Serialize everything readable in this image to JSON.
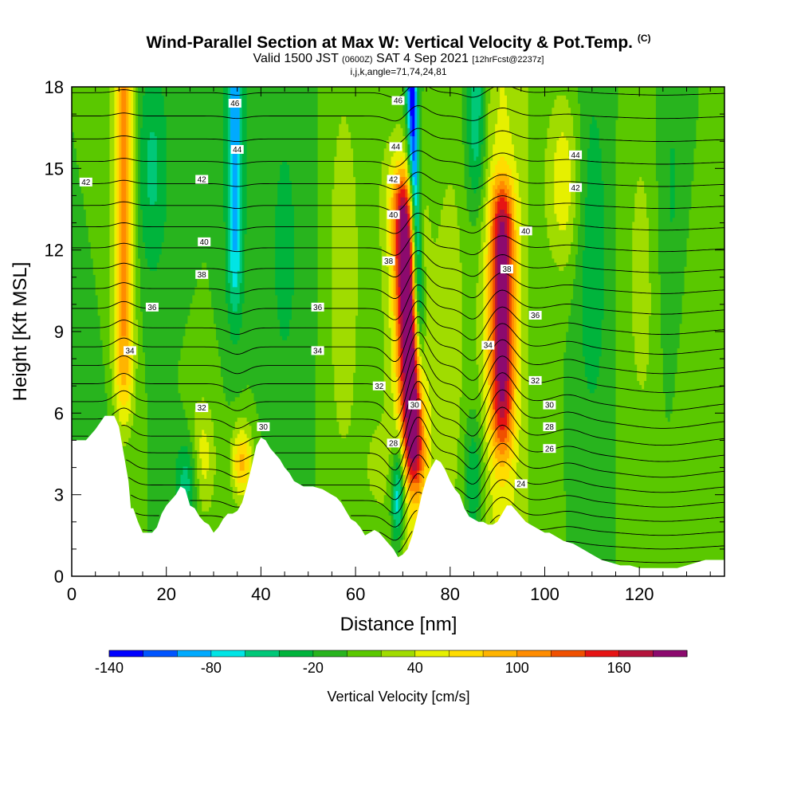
{
  "header": {
    "title": "Wind-Parallel Section at Max W: Vertical Velocity & Pot.Temp.",
    "copyright": "(C)",
    "valid_prefix": "Valid 1500 JST",
    "valid_utc": "(0600Z)",
    "valid_date": "SAT 4 Sep 2021",
    "forecast": "[12hrFcst@2237z]",
    "indices": "i,j,k,angle=71,74,24,81"
  },
  "chart_data": {
    "type": "heatmap",
    "xlabel": "Distance [nm]",
    "ylabel": "Height [Kft MSL]",
    "xlim": [
      0,
      138
    ],
    "ylim": [
      0,
      18
    ],
    "x_ticks": [
      0,
      20,
      40,
      60,
      80,
      100,
      120
    ],
    "y_ticks": [
      0,
      3,
      6,
      9,
      12,
      15,
      18
    ],
    "colorbar": {
      "label": "Vertical Velocity [cm/s]",
      "tick_labels": [
        "-140",
        "-80",
        "-20",
        "40",
        "100",
        "160"
      ],
      "tick_values": [
        -140,
        -80,
        -20,
        40,
        100,
        160
      ],
      "levels": [
        -140,
        -120,
        -100,
        -80,
        -60,
        -40,
        -20,
        0,
        20,
        40,
        60,
        80,
        100,
        120,
        140,
        160,
        180,
        200
      ],
      "colors": [
        "#0000ff",
        "#0055ff",
        "#00aaff",
        "#00e5e5",
        "#00c878",
        "#00b43c",
        "#28b41e",
        "#5ac800",
        "#a0dc00",
        "#e6f000",
        "#ffdc00",
        "#ffb400",
        "#ff8c00",
        "#f05000",
        "#e61414",
        "#b4143c",
        "#8c0a6e"
      ]
    },
    "updraft_cores": [
      {
        "x": 71.5,
        "w_max": 180,
        "top_kft": 14.5
      },
      {
        "x": 91,
        "w_max": 160,
        "top_kft": 14
      }
    ],
    "downdraft_cores": [
      {
        "x": 34.5,
        "w_min": -100
      },
      {
        "x": 73,
        "w_min": -140
      },
      {
        "x": 85,
        "w_min": -80
      }
    ],
    "theta_contour_labels": [
      {
        "text": "46",
        "x": 34.5,
        "y": 17.4
      },
      {
        "text": "46",
        "x": 69,
        "y": 17.5
      },
      {
        "text": "44",
        "x": 35,
        "y": 15.7
      },
      {
        "text": "44",
        "x": 68.5,
        "y": 15.8
      },
      {
        "text": "44",
        "x": 106.5,
        "y": 15.5
      },
      {
        "text": "42",
        "x": 3,
        "y": 14.5
      },
      {
        "text": "42",
        "x": 27.5,
        "y": 14.6
      },
      {
        "text": "42",
        "x": 68,
        "y": 14.6
      },
      {
        "text": "42",
        "x": 106.5,
        "y": 14.3
      },
      {
        "text": "40",
        "x": 28,
        "y": 12.3
      },
      {
        "text": "40",
        "x": 68,
        "y": 13.3
      },
      {
        "text": "40",
        "x": 96,
        "y": 12.7
      },
      {
        "text": "38",
        "x": 27.5,
        "y": 11.1
      },
      {
        "text": "38",
        "x": 67,
        "y": 11.6
      },
      {
        "text": "38",
        "x": 92,
        "y": 11.3
      },
      {
        "text": "36",
        "x": 17,
        "y": 9.9
      },
      {
        "text": "36",
        "x": 52,
        "y": 9.9
      },
      {
        "text": "36",
        "x": 98,
        "y": 9.6
      },
      {
        "text": "34",
        "x": 12.3,
        "y": 8.3
      },
      {
        "text": "34",
        "x": 52,
        "y": 8.3
      },
      {
        "text": "34",
        "x": 88,
        "y": 8.5
      },
      {
        "text": "32",
        "x": 27.5,
        "y": 6.2
      },
      {
        "text": "32",
        "x": 65,
        "y": 7.0
      },
      {
        "text": "32",
        "x": 98,
        "y": 7.2
      },
      {
        "text": "30",
        "x": 40.5,
        "y": 5.5
      },
      {
        "text": "30",
        "x": 72.5,
        "y": 6.3
      },
      {
        "text": "30",
        "x": 101,
        "y": 6.3
      },
      {
        "text": "28",
        "x": 68,
        "y": 4.9
      },
      {
        "text": "28",
        "x": 101,
        "y": 5.5
      },
      {
        "text": "26",
        "x": 101,
        "y": 4.7
      },
      {
        "text": "24",
        "x": 95,
        "y": 3.4
      }
    ],
    "terrain": [
      [
        0,
        5
      ],
      [
        3,
        5
      ],
      [
        5,
        5.4
      ],
      [
        7,
        5.9
      ],
      [
        9,
        5.9
      ],
      [
        10,
        5.5
      ],
      [
        11,
        4.5
      ],
      [
        12,
        3.5
      ],
      [
        12.5,
        2.5
      ],
      [
        13,
        2.5
      ],
      [
        14,
        2
      ],
      [
        15,
        1.6
      ],
      [
        17,
        1.6
      ],
      [
        18,
        1.8
      ],
      [
        19,
        2.3
      ],
      [
        20,
        2.6
      ],
      [
        21,
        2.8
      ],
      [
        22,
        3.0
      ],
      [
        23,
        3.3
      ],
      [
        24,
        3.2
      ],
      [
        25,
        2.6
      ],
      [
        26,
        2.5
      ],
      [
        27,
        2.2
      ],
      [
        28,
        2.0
      ],
      [
        29,
        1.9
      ],
      [
        30,
        1.6
      ],
      [
        31,
        1.8
      ],
      [
        32,
        2.1
      ],
      [
        33,
        2.3
      ],
      [
        34,
        2.3
      ],
      [
        35,
        2.4
      ],
      [
        36,
        2.7
      ],
      [
        37,
        3.3
      ],
      [
        38,
        4.0
      ],
      [
        39,
        4.8
      ],
      [
        40,
        5.1
      ],
      [
        41,
        5.0
      ],
      [
        42,
        4.7
      ],
      [
        43,
        4.5
      ],
      [
        44,
        4.3
      ],
      [
        45,
        4.0
      ],
      [
        46,
        3.8
      ],
      [
        47,
        3.5
      ],
      [
        48,
        3.4
      ],
      [
        49,
        3.3
      ],
      [
        51,
        3.3
      ],
      [
        53,
        3.2
      ],
      [
        54,
        3.1
      ],
      [
        55,
        3.0
      ],
      [
        56,
        2.9
      ],
      [
        57,
        2.7
      ],
      [
        58,
        2.4
      ],
      [
        59,
        2.1
      ],
      [
        60,
        2.0
      ],
      [
        61,
        1.8
      ],
      [
        62,
        1.5
      ],
      [
        63,
        1.6
      ],
      [
        64,
        1.7
      ],
      [
        65,
        1.6
      ],
      [
        66,
        1.4
      ],
      [
        67,
        1.2
      ],
      [
        68,
        1.0
      ],
      [
        69,
        0.7
      ],
      [
        70,
        0.8
      ],
      [
        71,
        1.0
      ],
      [
        72,
        1.5
      ],
      [
        73,
        2.2
      ],
      [
        74,
        3.0
      ],
      [
        75,
        3.6
      ],
      [
        76,
        4.0
      ],
      [
        77,
        4.3
      ],
      [
        78,
        4.2
      ],
      [
        79,
        3.9
      ],
      [
        80,
        3.5
      ],
      [
        81,
        3.2
      ],
      [
        82,
        3.0
      ],
      [
        83,
        2.5
      ],
      [
        84,
        2.2
      ],
      [
        85,
        2.1
      ],
      [
        86,
        2.0
      ],
      [
        87,
        2.0
      ],
      [
        88,
        1.9
      ],
      [
        89,
        1.9
      ],
      [
        90,
        2.0
      ],
      [
        91,
        2.3
      ],
      [
        92,
        2.6
      ],
      [
        93,
        2.6
      ],
      [
        94,
        2.4
      ],
      [
        95,
        2.2
      ],
      [
        96,
        2.0
      ],
      [
        97,
        1.9
      ],
      [
        98,
        1.8
      ],
      [
        99,
        1.7
      ],
      [
        100,
        1.6
      ],
      [
        101,
        1.6
      ],
      [
        102,
        1.5
      ],
      [
        103,
        1.4
      ],
      [
        104,
        1.3
      ],
      [
        106,
        1.2
      ],
      [
        108,
        1.0
      ],
      [
        110,
        0.8
      ],
      [
        112,
        0.6
      ],
      [
        114,
        0.5
      ],
      [
        116,
        0.4
      ],
      [
        118,
        0.4
      ],
      [
        120,
        0.3
      ],
      [
        124,
        0.3
      ],
      [
        128,
        0.3
      ],
      [
        130,
        0.4
      ],
      [
        132,
        0.5
      ],
      [
        134,
        0.6
      ],
      [
        136,
        0.6
      ],
      [
        138,
        0.6
      ]
    ]
  }
}
